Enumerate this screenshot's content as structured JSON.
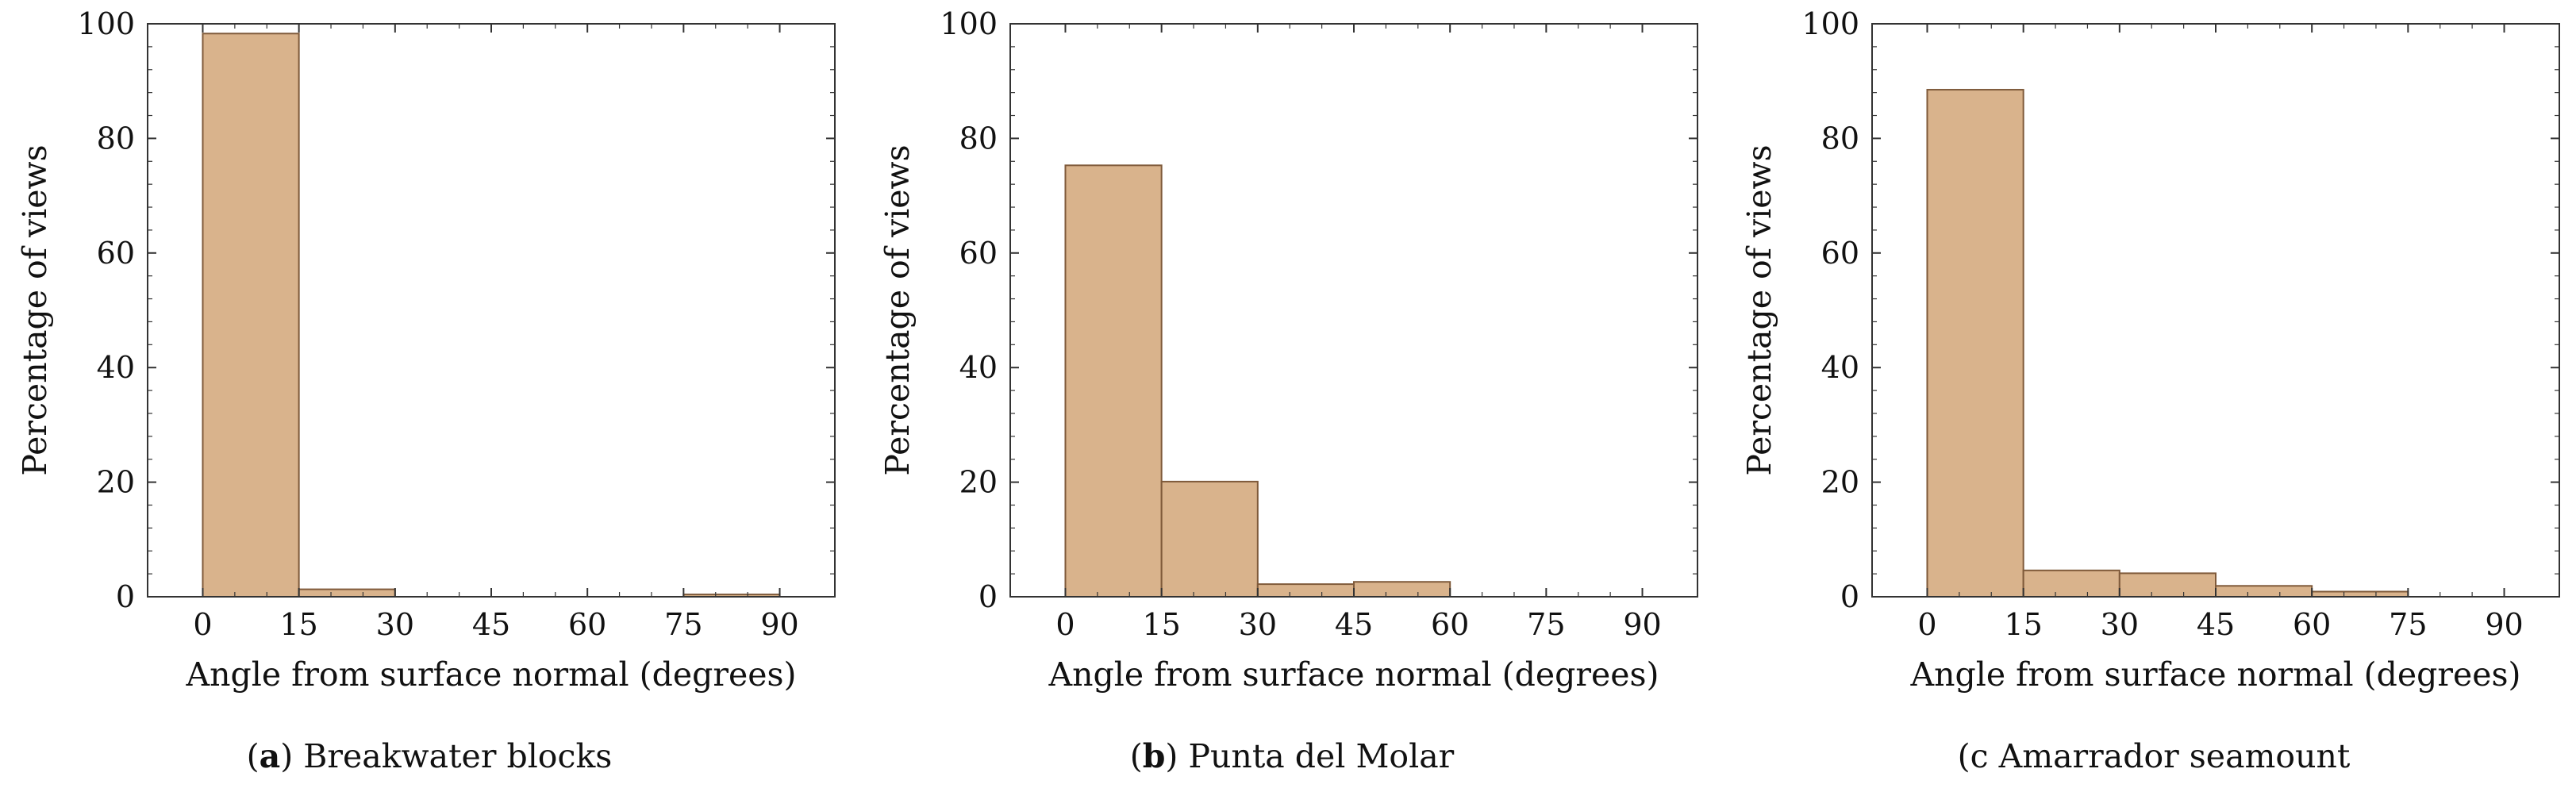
{
  "chart_data": [
    {
      "type": "bar",
      "subplot": "a",
      "caption": {
        "prefix": "(",
        "letter": "a",
        "suffix": ") Breakwater blocks"
      },
      "xlabel": "Angle from surface normal (degrees)",
      "ylabel": "Percentage of views",
      "bin_edges": [
        0,
        15,
        30,
        45,
        60,
        75,
        90
      ],
      "values": [
        98.3,
        1.3,
        0,
        0,
        0,
        0.4
      ],
      "xlim": [
        -8.6,
        98.6
      ],
      "ylim": [
        0,
        100
      ],
      "xticks": [
        0,
        15,
        30,
        45,
        60,
        75,
        90
      ],
      "yticks": [
        0,
        20,
        40,
        60,
        80,
        100
      ],
      "grid": false,
      "colors": {
        "bar_fill": "#d9b38c",
        "bar_edge": "#7f5a3a",
        "axis": "#333333"
      }
    },
    {
      "type": "bar",
      "subplot": "b",
      "caption": {
        "prefix": "(",
        "letter": "b",
        "suffix": ") Punta del Molar"
      },
      "xlabel": "Angle from surface normal (degrees)",
      "ylabel": "Percentage of views",
      "bin_edges": [
        0,
        15,
        30,
        45,
        60,
        75,
        90
      ],
      "values": [
        75.3,
        20.1,
        2.2,
        2.6,
        0,
        0
      ],
      "xlim": [
        -8.6,
        98.6
      ],
      "ylim": [
        0,
        100
      ],
      "xticks": [
        0,
        15,
        30,
        45,
        60,
        75,
        90
      ],
      "yticks": [
        0,
        20,
        40,
        60,
        80,
        100
      ],
      "grid": false,
      "colors": {
        "bar_fill": "#d9b38c",
        "bar_edge": "#7f5a3a",
        "axis": "#333333"
      }
    },
    {
      "type": "bar",
      "subplot": "c",
      "caption": {
        "prefix": "(",
        "letter": "c",
        "suffix": " Amarrador seamount"
      },
      "caption_letter_plain": true,
      "xlabel": "Angle from surface normal (degrees)",
      "ylabel": "Percentage of views",
      "bin_edges": [
        0,
        15,
        30,
        45,
        60,
        75,
        90
      ],
      "values": [
        88.5,
        4.6,
        4.1,
        1.9,
        0.9,
        0
      ],
      "xlim": [
        -8.6,
        98.6
      ],
      "ylim": [
        0,
        100
      ],
      "xticks": [
        0,
        15,
        30,
        45,
        60,
        75,
        90
      ],
      "yticks": [
        0,
        20,
        40,
        60,
        80,
        100
      ],
      "grid": false,
      "colors": {
        "bar_fill": "#d9b38c",
        "bar_edge": "#7f5a3a",
        "axis": "#333333"
      }
    }
  ]
}
